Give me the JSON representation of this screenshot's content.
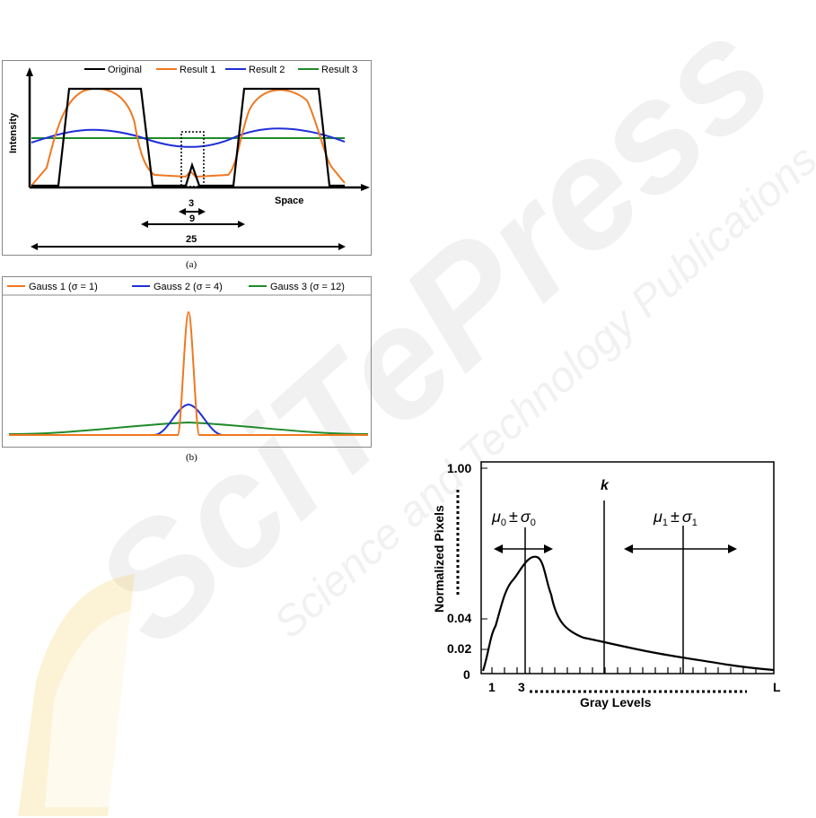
{
  "watermark": {
    "line1": "SciTePress",
    "line2": "Science and Technology Publications"
  },
  "figure_a": {
    "caption": "(a)",
    "legend": [
      "Original",
      "Result 1",
      "Result 2",
      "Result 3"
    ],
    "ylabel": "Intensity",
    "xlabel": "Space",
    "spans": [
      "3",
      "9",
      "25"
    ],
    "colors": {
      "original": "#000000",
      "result1": "#f07820",
      "result2": "#1f2fd8",
      "result3": "#1f8a2a"
    }
  },
  "figure_b": {
    "caption": "(b)",
    "legend": [
      {
        "name": "Gauss 1",
        "sigma": "1"
      },
      {
        "name": "Gauss 2",
        "sigma": "4"
      },
      {
        "name": "Gauss 3",
        "sigma": "12"
      }
    ],
    "colors": {
      "g1": "#f07820",
      "g2": "#1f2fd8",
      "g3": "#1f8a2a"
    }
  },
  "figure_c": {
    "ylabel": "Normalized Pixels",
    "xlabel": "Gray Levels",
    "yticks": [
      "1.00",
      "0.04",
      "0.02",
      "0"
    ],
    "xticks": [
      "1",
      "3",
      "L"
    ],
    "threshold_label": "k",
    "class0_label": {
      "mu": "μ",
      "sub": "0",
      "pm": "±",
      "sigma": "σ",
      "sub2": "0"
    },
    "class1_label": {
      "mu": "μ",
      "sub": "1",
      "pm": "±",
      "sigma": "σ",
      "sub2": "1"
    }
  }
}
